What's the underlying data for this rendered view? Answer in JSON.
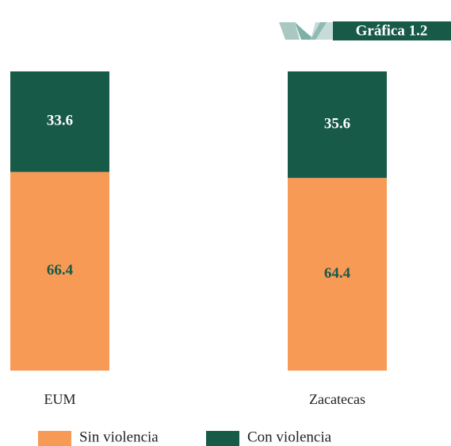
{
  "chart_data": {
    "type": "stacked-bar",
    "title": "Gráfica 1.2",
    "categories": [
      "EUM",
      "Zacatecas"
    ],
    "series": [
      {
        "name": "Sin violencia",
        "color": "#f79a55",
        "values": [
          66.4,
          64.4
        ]
      },
      {
        "name": "Con violencia",
        "color": "#175a48",
        "values": [
          33.6,
          35.6
        ]
      }
    ]
  }
}
